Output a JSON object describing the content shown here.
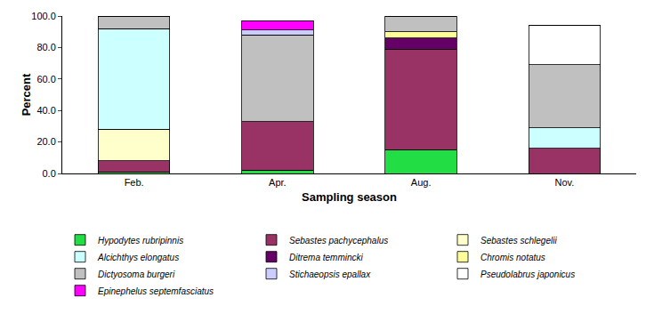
{
  "chart_data": {
    "type": "bar",
    "stacked": true,
    "x_label": "Sampling season",
    "y_label": "Percent",
    "categories": [
      "Feb.",
      "Apr.",
      "Aug.",
      "Nov."
    ],
    "series": [
      {
        "name": "Hypodytes rubripinnis",
        "color": "#22dd44",
        "values": [
          1,
          2,
          15,
          0
        ]
      },
      {
        "name": "Sebastes pachycephalus",
        "color": "#993366",
        "values": [
          7,
          31,
          64,
          16
        ]
      },
      {
        "name": "Sebastes schlegelii",
        "color": "#ffffcc",
        "values": [
          20,
          0,
          0,
          0
        ]
      },
      {
        "name": "Alcichthys elongatus",
        "color": "#ccffff",
        "values": [
          64,
          0,
          0,
          13
        ]
      },
      {
        "name": "Ditrema temmincki",
        "color": "#660066",
        "values": [
          0,
          0,
          7,
          0
        ]
      },
      {
        "name": "Chromis notatus",
        "color": "#ffff99",
        "values": [
          0,
          0,
          4,
          0
        ]
      },
      {
        "name": "Dictyosoma burgeri",
        "color": "#c0c0c0",
        "values": [
          8,
          55,
          10,
          40
        ]
      },
      {
        "name": "Stichaeopsis epallax",
        "color": "#ccccff",
        "values": [
          0,
          3,
          0,
          0
        ]
      },
      {
        "name": "Pseudolabrus japonicus",
        "color": "#ffffff",
        "values": [
          0,
          0,
          0,
          25
        ]
      },
      {
        "name": "Epinephelus septemfasciatus",
        "color": "#ff00ff",
        "values": [
          0,
          6,
          0,
          0
        ]
      }
    ],
    "ylim": [
      0,
      100
    ],
    "yticks": [
      {
        "value": 0,
        "label": "0.0"
      },
      {
        "value": 20,
        "label": "20.0"
      },
      {
        "value": 40,
        "label": "40.0"
      },
      {
        "value": 60,
        "label": "60.0"
      },
      {
        "value": 80,
        "label": "80.0"
      },
      {
        "value": 100,
        "label": "100.0"
      }
    ],
    "grid": false,
    "legend": "bottom"
  }
}
